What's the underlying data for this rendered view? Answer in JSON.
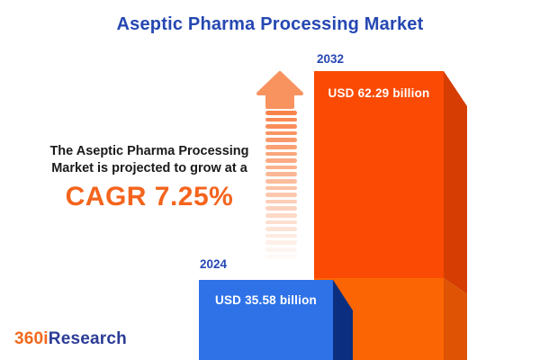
{
  "header": {
    "title": "Aseptic Pharma Processing Market"
  },
  "annotation": {
    "line1": "The Aseptic Pharma Processing",
    "line2": "Market is projected to grow at a",
    "cagr": "CAGR 7.25%"
  },
  "bars": [
    {
      "year": "2024",
      "value_label": "USD 35.58 billion"
    },
    {
      "year": "2032",
      "value_label": "USD 62.29 billion"
    }
  ],
  "footer": {
    "logo_prefix": "360i",
    "logo_suffix": "Research"
  },
  "colors": {
    "title_blue": "#2547B2",
    "cagr_orange": "#F4641D",
    "bar_2024_front": "#2F72E8",
    "bar_2024_side": "#0B2E80",
    "bar_2032_front_upper": "#FA4A03",
    "bar_2032_side_upper": "#D53D02",
    "bar_2032_front_lower": "#FB6503",
    "bar_2032_side_lower": "#DE5404",
    "arrow_orange": "#F8935F",
    "logo_orange": "#F2691D",
    "logo_blue": "#2B3C96"
  },
  "chart_data": {
    "type": "bar",
    "title": "Aseptic Pharma Processing Market",
    "categories": [
      "2024",
      "2032"
    ],
    "values": [
      35.58,
      62.29
    ],
    "unit": "USD billion",
    "value_labels": [
      "USD 35.58 billion",
      "USD 62.29 billion"
    ],
    "cagr_percent": 7.25,
    "annotation": "The Aseptic Pharma Processing Market is projected to grow at a CAGR 7.25%",
    "bar_colors": [
      "#2F72E8",
      "#FA4A03"
    ],
    "legend": "none",
    "grid": false,
    "style": "3d-isometric infographic bars, values printed inside bars, years above bars"
  }
}
